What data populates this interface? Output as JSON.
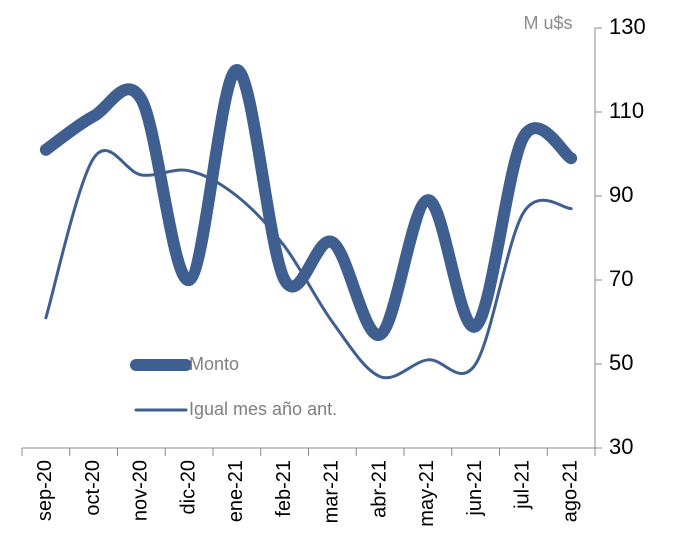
{
  "chart_data": {
    "type": "line",
    "ylabel": "M u$s",
    "categories": [
      "sep-20",
      "oct-20",
      "nov-20",
      "dic-20",
      "ene-21",
      "feb-21",
      "mar-21",
      "abr-21",
      "may-21",
      "jun-21",
      "jul-21",
      "ago-21"
    ],
    "series": [
      {
        "name": "Monto",
        "color": "#3e5f8f",
        "values": [
          101,
          109,
          113,
          70,
          120,
          70,
          79,
          57,
          89,
          59,
          104,
          99
        ]
      },
      {
        "name": "Igual mes año ant.",
        "color": "#3e5f8f",
        "values": [
          61,
          99,
          95,
          96,
          90,
          78,
          60,
          47,
          51,
          50,
          86,
          87
        ]
      }
    ],
    "ylim": [
      30,
      130
    ],
    "yticks": [
      30,
      50,
      70,
      90,
      110,
      130
    ],
    "grid": false,
    "smooth": true
  }
}
